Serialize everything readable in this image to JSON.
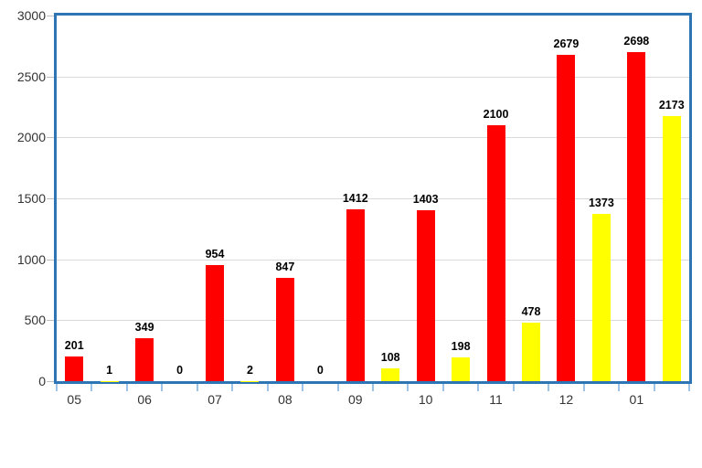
{
  "chart_data": {
    "type": "bar",
    "title": "",
    "categories": [
      "05",
      "06",
      "07",
      "08",
      "09",
      "10",
      "11",
      "12",
      "01"
    ],
    "series": [
      {
        "name": "red-series",
        "color": "#FF0000",
        "values": [
          201,
          349,
          954,
          847,
          1412,
          1403,
          2100,
          2679,
          2698
        ]
      },
      {
        "name": "yellow-series",
        "color": "#FFFF00",
        "values": [
          1,
          0,
          2,
          0,
          108,
          198,
          478,
          1373,
          2173
        ]
      }
    ],
    "bar_layout": "interleaved: each category shows red bar then yellow bar, each in its own tick slot",
    "data_labels": true,
    "ylim": [
      0,
      3000
    ],
    "ytick_interval": 500,
    "y_tick_labels": [
      "0",
      "500",
      "1000",
      "1500",
      "2000",
      "2500",
      "3000"
    ],
    "xlabel": "",
    "ylabel": "",
    "grid": true,
    "legend": "none",
    "colors": {
      "frame_and_axis": "#2E75B6",
      "x_tick": "#9DC3E6",
      "gridline": "#D9D9D9",
      "y_tick": "#BFBFBF",
      "data_label_text": "#000000",
      "axis_label_text": "#333333",
      "background": "#FFFFFF"
    }
  }
}
